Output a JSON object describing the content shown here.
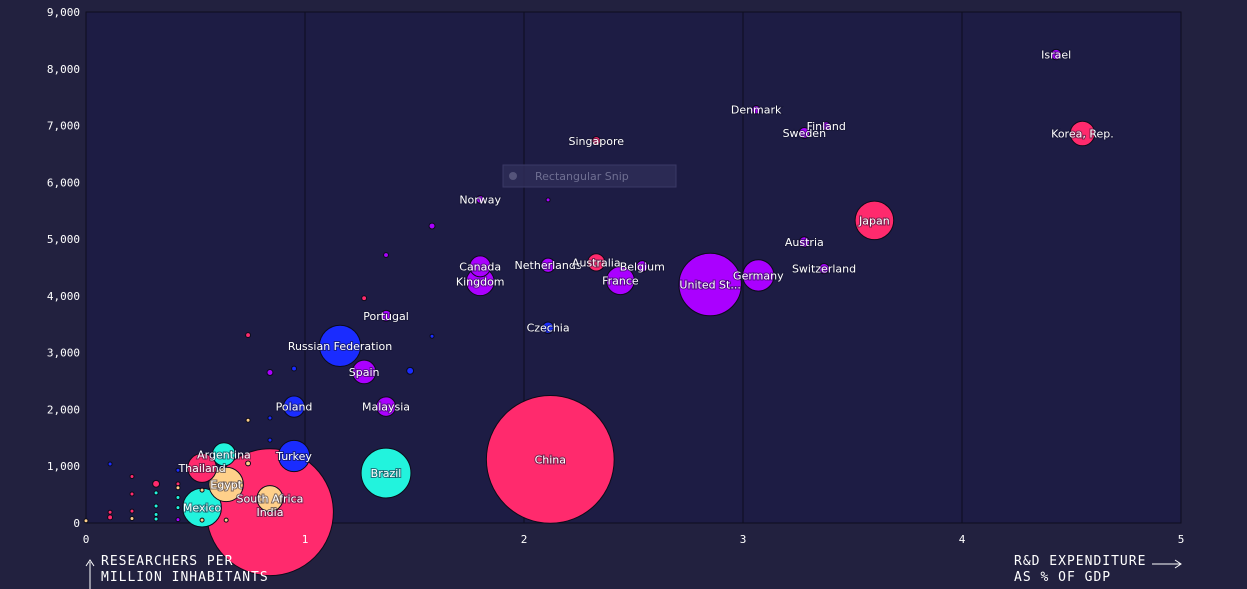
{
  "colors": {
    "background": "#22213f",
    "plot_background": "#1d1c44",
    "grid": "#0d0d1e",
    "text": "#ffffff",
    "region_purple": "#aa00ff",
    "region_pink": "#ff2a6d",
    "region_blue": "#1a2cff",
    "region_cyan": "#22f3dd",
    "region_yellow": "#ffd08a"
  },
  "overlay": {
    "label": "Rectangular Snip",
    "icon": "snip-icon"
  },
  "chart_data": {
    "type": "scatter",
    "xlabel": [
      "R&D EXPENDITURE",
      "AS % OF GDP"
    ],
    "ylabel": [
      "RESEARCHERS PER",
      "MILLION INHABITANTS"
    ],
    "xlim": [
      0,
      5
    ],
    "ylim": [
      0,
      9000
    ],
    "xticks": [
      0,
      1,
      2,
      3,
      4,
      5
    ],
    "yticks": [
      0,
      1000,
      2000,
      3000,
      4000,
      5000,
      6000,
      7000,
      8000,
      9000
    ],
    "xtick_labels": [
      "0",
      "1",
      "2",
      "3",
      "4",
      "5"
    ],
    "ytick_labels": [
      "0",
      "1,000",
      "2,000",
      "3,000",
      "4,000",
      "5,000",
      "6,000",
      "7,000",
      "8,000",
      "9,000"
    ],
    "grid": true,
    "points": [
      {
        "label": "United States",
        "display": "United St...",
        "x": 2.85,
        "y": 4200,
        "size": 330,
        "color": "#aa00ff"
      },
      {
        "label": "China",
        "x": 2.12,
        "y": 1120,
        "size": 1380,
        "color": "#ff2a6d"
      },
      {
        "label": "Japan",
        "x": 3.6,
        "y": 5330,
        "size": 126,
        "color": "#ff2a6d"
      },
      {
        "label": "Germany",
        "x": 3.07,
        "y": 4360,
        "size": 83,
        "color": "#aa00ff"
      },
      {
        "label": "India",
        "x": 0.84,
        "y": 190,
        "size": 1360,
        "color": "#ff2a6d",
        "alpha": 1
      },
      {
        "label": "Brazil",
        "x": 1.37,
        "y": 880,
        "size": 210,
        "color": "#22f3dd"
      },
      {
        "label": "Russian Federation",
        "x": 1.16,
        "y": 3120,
        "size": 144,
        "color": "#1a2cff"
      },
      {
        "label": "Korea, Rep.",
        "x": 4.55,
        "y": 6860,
        "size": 51,
        "color": "#ff2a6d"
      },
      {
        "label": "Israel",
        "x": 4.43,
        "y": 8250,
        "size": 9,
        "color": "#aa00ff"
      },
      {
        "label": "Denmark",
        "x": 3.06,
        "y": 7280,
        "size": 6,
        "color": "#aa00ff"
      },
      {
        "label": "Finland",
        "x": 3.38,
        "y": 6990,
        "size": 6,
        "color": "#aa00ff"
      },
      {
        "label": "Sweden",
        "x": 3.28,
        "y": 6870,
        "size": 10,
        "color": "#aa00ff"
      },
      {
        "label": "Singapore",
        "x": 2.33,
        "y": 6730,
        "size": 6,
        "color": "#ff2a6d"
      },
      {
        "label": "Norway",
        "x": 1.8,
        "y": 5700,
        "size": 5,
        "color": "#aa00ff"
      },
      {
        "label": "Austria",
        "x": 3.28,
        "y": 4950,
        "size": 9,
        "color": "#aa00ff"
      },
      {
        "label": "Switzerland",
        "x": 3.37,
        "y": 4480,
        "size": 9,
        "color": "#aa00ff"
      },
      {
        "label": "Canada",
        "x": 1.8,
        "y": 4520,
        "size": 37,
        "color": "#aa00ff"
      },
      {
        "label": "United Kingdom",
        "display": "Kingdom",
        "x": 1.8,
        "y": 4250,
        "size": 66,
        "color": "#aa00ff"
      },
      {
        "label": "Netherlands",
        "x": 2.11,
        "y": 4540,
        "size": 17,
        "color": "#aa00ff"
      },
      {
        "label": "Australia",
        "x": 2.33,
        "y": 4590,
        "size": 25,
        "color": "#ff2a6d"
      },
      {
        "label": "Belgium",
        "x": 2.54,
        "y": 4520,
        "size": 11,
        "color": "#aa00ff"
      },
      {
        "label": "France",
        "x": 2.44,
        "y": 4270,
        "size": 67,
        "color": "#aa00ff"
      },
      {
        "label": "Czechia",
        "x": 2.11,
        "y": 3440,
        "size": 11,
        "color": "#1a2cff"
      },
      {
        "label": "Portugal",
        "x": 1.37,
        "y": 3650,
        "size": 10,
        "color": "#aa00ff"
      },
      {
        "label": "Spain",
        "x": 1.27,
        "y": 2660,
        "size": 47,
        "color": "#aa00ff"
      },
      {
        "label": "Poland",
        "x": 0.95,
        "y": 2050,
        "size": 38,
        "color": "#1a2cff"
      },
      {
        "label": "Malaysia",
        "x": 1.37,
        "y": 2050,
        "size": 32,
        "color": "#aa00ff"
      },
      {
        "label": "Turkey",
        "x": 0.95,
        "y": 1180,
        "size": 83,
        "color": "#1a2cff"
      },
      {
        "label": "Argentina",
        "x": 0.63,
        "y": 1210,
        "size": 45,
        "color": "#22f3dd"
      },
      {
        "label": "Thailand",
        "x": 0.53,
        "y": 970,
        "size": 70,
        "color": "#ff2a6d"
      },
      {
        "label": "Egypt",
        "x": 0.64,
        "y": 680,
        "size": 100,
        "color": "#ffd08a"
      },
      {
        "label": "South Africa",
        "x": 0.84,
        "y": 430,
        "size": 57,
        "color": "#ffd08a"
      },
      {
        "label": "Mexico",
        "x": 0.53,
        "y": 270,
        "size": 127,
        "color": "#22f3dd"
      },
      {
        "label": "",
        "x": 1.58,
        "y": 5230,
        "size": 3,
        "color": "#aa00ff"
      },
      {
        "label": "",
        "x": 1.37,
        "y": 4720,
        "size": 2,
        "color": "#aa00ff"
      },
      {
        "label": "",
        "x": 2.11,
        "y": 5690,
        "size": 1,
        "color": "#aa00ff"
      },
      {
        "label": "",
        "x": 1.27,
        "y": 3960,
        "size": 2,
        "color": "#ff2a6d"
      },
      {
        "label": "",
        "x": 1.58,
        "y": 3290,
        "size": 1,
        "color": "#1a2cff"
      },
      {
        "label": "",
        "x": 0.74,
        "y": 3310,
        "size": 2,
        "color": "#ff2a6d"
      },
      {
        "label": "",
        "x": 1.48,
        "y": 2680,
        "size": 4,
        "color": "#1a2cff"
      },
      {
        "label": "",
        "x": 0.95,
        "y": 2720,
        "size": 2,
        "color": "#1a2cff"
      },
      {
        "label": "",
        "x": 0.84,
        "y": 2650,
        "size": 3,
        "color": "#aa00ff"
      },
      {
        "label": "",
        "x": 0.84,
        "y": 1850,
        "size": 1,
        "color": "#1a2cff"
      },
      {
        "label": "",
        "x": 0.74,
        "y": 1810,
        "size": 1,
        "color": "#ffd08a"
      },
      {
        "label": "",
        "x": 0.84,
        "y": 1460,
        "size": 1,
        "color": "#1a2cff"
      },
      {
        "label": "",
        "x": 0.74,
        "y": 1050,
        "size": 2,
        "color": "#ffd08a"
      },
      {
        "label": "",
        "x": 0.42,
        "y": 930,
        "size": 1,
        "color": "#1a2cff"
      },
      {
        "label": "",
        "x": 0.11,
        "y": 1040,
        "size": 1,
        "color": "#1a2cff"
      },
      {
        "label": "",
        "x": 0.21,
        "y": 820,
        "size": 1,
        "color": "#ff2a6d"
      },
      {
        "label": "",
        "x": 0.32,
        "y": 690,
        "size": 4,
        "color": "#ff2a6d"
      },
      {
        "label": "",
        "x": 0.42,
        "y": 690,
        "size": 1,
        "color": "#ff2a6d"
      },
      {
        "label": "",
        "x": 0.42,
        "y": 620,
        "size": 1,
        "color": "#ffd08a"
      },
      {
        "label": "",
        "x": 0.53,
        "y": 580,
        "size": 1,
        "color": "#ffd08a"
      },
      {
        "label": "",
        "x": 0.32,
        "y": 530,
        "size": 1,
        "color": "#22f3dd"
      },
      {
        "label": "",
        "x": 0.21,
        "y": 510,
        "size": 1,
        "color": "#ff2a6d"
      },
      {
        "label": "",
        "x": 0.42,
        "y": 450,
        "size": 1,
        "color": "#22f3dd"
      },
      {
        "label": "",
        "x": 0.32,
        "y": 300,
        "size": 1,
        "color": "#22f3dd"
      },
      {
        "label": "",
        "x": 0.42,
        "y": 270,
        "size": 1,
        "color": "#22f3dd"
      },
      {
        "label": "",
        "x": 0.21,
        "y": 210,
        "size": 1,
        "color": "#ff2a6d"
      },
      {
        "label": "",
        "x": 0.11,
        "y": 190,
        "size": 1,
        "color": "#ff2a6d"
      },
      {
        "label": "",
        "x": 0.32,
        "y": 150,
        "size": 1,
        "color": "#22f3dd"
      },
      {
        "label": "",
        "x": 0.11,
        "y": 100,
        "size": 2,
        "color": "#ff2a6d"
      },
      {
        "label": "",
        "x": 0.21,
        "y": 80,
        "size": 1,
        "color": "#ffd08a"
      },
      {
        "label": "",
        "x": 0.32,
        "y": 70,
        "size": 1,
        "color": "#22f3dd"
      },
      {
        "label": "",
        "x": 0.42,
        "y": 60,
        "size": 1,
        "color": "#aa00ff"
      },
      {
        "label": "",
        "x": 0.53,
        "y": 50,
        "size": 1,
        "color": "#ffd08a"
      },
      {
        "label": "",
        "x": 0.64,
        "y": 50,
        "size": 1,
        "color": "#ffd08a"
      },
      {
        "label": "",
        "x": 0.0,
        "y": 40,
        "size": 1,
        "color": "#ffd08a"
      }
    ]
  }
}
